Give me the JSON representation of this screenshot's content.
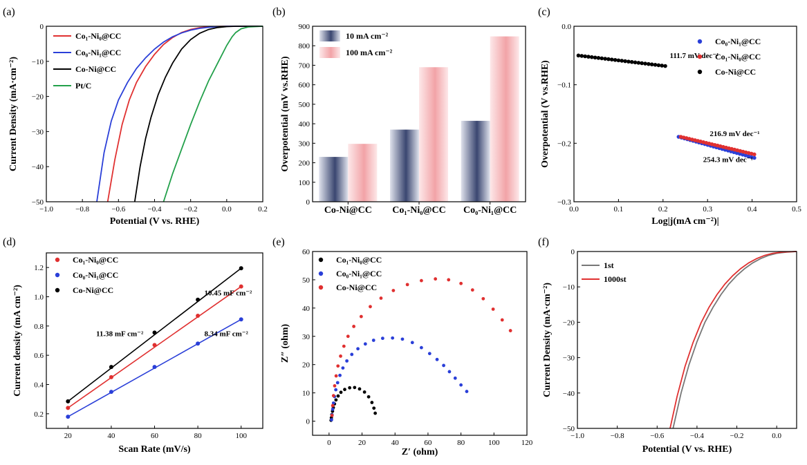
{
  "figure": {
    "panels": [
      {
        "id": "a",
        "letter": "(a)",
        "type": "line",
        "xlabel": "Potential (V vs. RHE)",
        "ylabel": "Current Density (mA·cm⁻²)",
        "xlim": [
          -1.0,
          0.2
        ],
        "ylim": [
          -50,
          0
        ],
        "xticks": [
          -1.0,
          -0.8,
          -0.6,
          -0.4,
          -0.2,
          0.0,
          0.2
        ],
        "xticklabels": [
          "−1.0",
          "−0.8",
          "−0.6",
          "−0.4",
          "−0.2",
          "0.0",
          "0.2"
        ],
        "yticks": [
          -50,
          -40,
          -30,
          -20,
          -10,
          0
        ],
        "yticklabels": [
          "−50",
          "−40",
          "−30",
          "−20",
          "−10",
          "0"
        ],
        "legend_position": "top-left",
        "series": [
          {
            "name": "Co₁-Ni₀@CC",
            "color": "#e03030",
            "x": [
              -0.66,
              -0.62,
              -0.58,
              -0.54,
              -0.5,
              -0.45,
              -0.4,
              -0.35,
              -0.3,
              -0.25,
              -0.2,
              -0.15,
              -0.1,
              -0.05,
              0.0,
              0.05,
              0.1,
              0.2
            ],
            "y": [
              -50,
              -38,
              -28,
              -21,
              -16,
              -11.5,
              -8,
              -5.2,
              -3.2,
              -1.8,
              -0.9,
              -0.4,
              -0.15,
              -0.05,
              0,
              0,
              0,
              0
            ]
          },
          {
            "name": "Co₀-Ni₁@CC",
            "color": "#2a3fd8",
            "x": [
              -0.72,
              -0.68,
              -0.64,
              -0.6,
              -0.55,
              -0.5,
              -0.45,
              -0.4,
              -0.35,
              -0.3,
              -0.25,
              -0.2,
              -0.15,
              -0.1,
              -0.05,
              0.0,
              0.1,
              0.2
            ],
            "y": [
              -50,
              -36,
              -27,
              -21,
              -16,
              -12,
              -9,
              -6.5,
              -4.5,
              -3,
              -1.9,
              -1.1,
              -0.6,
              -0.3,
              -0.1,
              0,
              0,
              0
            ]
          },
          {
            "name": "Co-Ni@CC",
            "color": "#000000",
            "x": [
              -0.51,
              -0.48,
              -0.45,
              -0.42,
              -0.38,
              -0.34,
              -0.3,
              -0.25,
              -0.2,
              -0.15,
              -0.1,
              -0.05,
              0.0,
              0.05,
              0.2
            ],
            "y": [
              -50,
              -40,
              -32,
              -26,
              -19.5,
              -14.5,
              -10.5,
              -6.5,
              -3.8,
              -2,
              -0.9,
              -0.35,
              -0.1,
              0,
              0
            ]
          },
          {
            "name": "Pt/C",
            "color": "#22a04a",
            "x": [
              -0.35,
              -0.3,
              -0.25,
              -0.2,
              -0.15,
              -0.1,
              -0.05,
              0.0,
              0.03,
              0.05,
              0.08,
              0.12,
              0.2
            ],
            "y": [
              -50,
              -42,
              -35,
              -28,
              -21.5,
              -15.5,
              -10.5,
              -5.5,
              -3,
              -1.8,
              -0.7,
              -0.2,
              0
            ]
          }
        ]
      },
      {
        "id": "b",
        "letter": "(b)",
        "type": "bar",
        "xlabel": "",
        "ylabel": "Overpotential (mV vs.RHE)",
        "ylim": [
          0,
          900
        ],
        "yticks": [
          0,
          100,
          200,
          300,
          400,
          500,
          600,
          700,
          800,
          900
        ],
        "yticklabels": [
          "0",
          "100",
          "200",
          "300",
          "400",
          "500",
          "600",
          "700",
          "800",
          "900"
        ],
        "categories": [
          "Co-Ni@CC",
          "Co₁-Ni₀@CC",
          "Co₀-Ni₁@CC"
        ],
        "legend_position": "top-left",
        "series": [
          {
            "name": "10 mA cm⁻²",
            "color": "#3c4870",
            "values": [
              230,
              370,
              415
            ]
          },
          {
            "name": "100 mA cm⁻²",
            "color": "#f0a0a4",
            "values": [
              297,
              690,
              848
            ]
          }
        ]
      },
      {
        "id": "c",
        "letter": "(c)",
        "type": "line",
        "xlabel": "Log|j(mA cm⁻²)|",
        "ylabel": "Overpotential (V vs.RHE)",
        "xlim": [
          0.0,
          0.5
        ],
        "ylim": [
          -0.3,
          0.0
        ],
        "xticks": [
          0.0,
          0.1,
          0.2,
          0.3,
          0.4,
          0.5
        ],
        "xticklabels": [
          "0.0",
          "0.1",
          "0.2",
          "0.3",
          "0.4",
          "0.5"
        ],
        "yticks": [
          -0.3,
          -0.2,
          -0.1,
          0.0
        ],
        "yticklabels": [
          "−0.3",
          "−0.2",
          "−0.1",
          "0.0"
        ],
        "legend_position": "top-right",
        "series": [
          {
            "name": "Co₀-Ni₁@CC",
            "color": "#2a3fd8",
            "x_start": 0.235,
            "x_end": 0.405,
            "y_start": -0.189,
            "y_end": -0.225
          },
          {
            "name": "Co₁-Ni₀@CC",
            "color": "#e03030",
            "x_start": 0.24,
            "x_end": 0.405,
            "y_start": -0.189,
            "y_end": -0.219
          },
          {
            "name": "Co-Ni@CC",
            "color": "#000000",
            "x_start": 0.01,
            "x_end": 0.205,
            "y_start": -0.05,
            "y_end": -0.068
          }
        ],
        "annotations": [
          "111.7 mV dec⁻¹",
          "216.9 mV dec⁻¹",
          "254.3 mV dec⁻¹"
        ]
      },
      {
        "id": "d",
        "letter": "(d)",
        "type": "scatter",
        "xlabel": "Scan Rate (mV/s)",
        "ylabel": "Current density (mA cm⁻²)",
        "xlim": [
          10,
          110
        ],
        "ylim": [
          0.1,
          1.3
        ],
        "xticks": [
          20,
          40,
          60,
          80,
          100
        ],
        "xticklabels": [
          "20",
          "40",
          "60",
          "80",
          "100"
        ],
        "yticks": [
          0.2,
          0.4,
          0.6,
          0.8,
          1.0,
          1.2
        ],
        "yticklabels": [
          "0.2",
          "0.4",
          "0.6",
          "0.8",
          "1.0",
          "1.2"
        ],
        "legend_position": "top-left",
        "x": [
          20,
          40,
          60,
          80,
          100
        ],
        "series": [
          {
            "name": "Co₁-Ni₀@CC",
            "color": "#e03030",
            "values": [
              0.24,
              0.45,
              0.67,
              0.87,
              1.07
            ]
          },
          {
            "name": "Co₀-Ni₁@CC",
            "color": "#2a3fd8",
            "values": [
              0.18,
              0.35,
              0.52,
              0.68,
              0.845
            ]
          },
          {
            "name": "Co-Ni@CC",
            "color": "#000000",
            "values": [
              0.285,
              0.52,
              0.755,
              0.98,
              1.195
            ]
          }
        ],
        "annotations": [
          "10.45 mF cm⁻²",
          "11.38 mF cm⁻²",
          "8.34 mF cm⁻²"
        ]
      },
      {
        "id": "e",
        "letter": "(e)",
        "type": "scatter",
        "xlabel": "Z′ (ohm)",
        "ylabel": "Z″ (ohm)",
        "xlim": [
          -10,
          120
        ],
        "ylim": [
          -5,
          60
        ],
        "xticks": [
          0,
          20,
          40,
          60,
          80,
          100,
          120
        ],
        "xticklabels": [
          "0",
          "20",
          "40",
          "60",
          "80",
          "100",
          "120"
        ],
        "yticks": [
          0,
          10,
          20,
          30,
          40,
          50,
          60
        ],
        "yticklabels": [
          "0",
          "10",
          "20",
          "30",
          "40",
          "50",
          "60"
        ],
        "legend_position": "top-left",
        "series": [
          {
            "name": "Co₁-Ni₀@CC",
            "color": "#000000",
            "x": [
              1.2,
              1.4,
              1.7,
              2.1,
              2.6,
              3.3,
              4.2,
              5.5,
              7.2,
              9.5,
              12.5,
              15.5,
              18.5,
              21.5,
              24,
              26,
              27.2,
              28
            ],
            "y": [
              0.3,
              1.2,
              2.3,
              3.5,
              4.8,
              6.1,
              7.5,
              8.9,
              10.2,
              11.2,
              11.8,
              11.9,
              11.4,
              10.3,
              8.6,
              6.6,
              4.6,
              2.8
            ]
          },
          {
            "name": "Co₀-Ni₁@CC",
            "color": "#2a3fd8",
            "x": [
              1.5,
              1.8,
              2.2,
              2.7,
              3.3,
              4.1,
              5.2,
              6.6,
              8.4,
              10.8,
              13.8,
              17.5,
              22,
              27,
              32.5,
              38.5,
              44.5,
              50.5,
              56,
              61,
              65.5,
              69.5,
              73,
              76.5,
              80,
              83.5
            ],
            "y": [
              0.5,
              2.2,
              4.2,
              6.4,
              8.7,
              11.1,
              13.6,
              16.2,
              18.8,
              21.3,
              23.6,
              25.6,
              27.3,
              28.6,
              29.3,
              29.4,
              29,
              27.8,
              26,
              23.9,
              21.8,
              19.7,
              17.5,
              15.2,
              12.8,
              10.5
            ]
          },
          {
            "name": "Co-Ni@CC",
            "color": "#e03030",
            "x": [
              1.8,
              2.2,
              2.7,
              3.4,
              4.3,
              5.4,
              7,
              9,
              11.5,
              15,
              19.5,
              25,
              31.5,
              39,
              47.5,
              56,
              64.5,
              72.5,
              80,
              87,
              93.5,
              99.5,
              105,
              110
            ],
            "y": [
              2,
              5.5,
              9,
              12.5,
              16,
              19.5,
              23,
              26.5,
              30,
              33.5,
              37,
              40.5,
              43.5,
              46.2,
              48.3,
              49.7,
              50.3,
              50,
              48.7,
              46.4,
              43.3,
              39.6,
              35.8,
              32
            ]
          }
        ]
      },
      {
        "id": "f",
        "letter": "(f)",
        "type": "line",
        "xlabel": "Potential (V vs. RHE)",
        "ylabel": "Current Density (mA·cm⁻²)",
        "xlim": [
          -1.0,
          0.1
        ],
        "ylim": [
          -50,
          0
        ],
        "xticks": [
          -1.0,
          -0.8,
          -0.6,
          -0.4,
          -0.2,
          0.0
        ],
        "xticklabels": [
          "−1.0",
          "−0.8",
          "−0.6",
          "−0.4",
          "−0.2",
          "0.0"
        ],
        "yticks": [
          -50,
          -40,
          -30,
          -20,
          -10,
          0
        ],
        "yticklabels": [
          "−50",
          "−40",
          "−30",
          "−20",
          "−10",
          "0"
        ],
        "legend_position": "top-left",
        "series": [
          {
            "name": "1st",
            "color": "#777777",
            "x": [
              -0.52,
              -0.48,
              -0.44,
              -0.4,
              -0.36,
              -0.32,
              -0.28,
              -0.24,
              -0.2,
              -0.16,
              -0.12,
              -0.08,
              -0.04,
              0.0,
              0.05,
              0.1
            ],
            "y": [
              -50,
              -40,
              -32,
              -25.5,
              -20,
              -15.8,
              -12.2,
              -9.2,
              -6.8,
              -4.8,
              -3.2,
              -2,
              -1.1,
              -0.5,
              -0.15,
              0
            ]
          },
          {
            "name": "1000st",
            "color": "#e03030",
            "x": [
              -0.535,
              -0.5,
              -0.46,
              -0.42,
              -0.38,
              -0.34,
              -0.3,
              -0.26,
              -0.22,
              -0.18,
              -0.14,
              -0.1,
              -0.06,
              -0.02,
              0.03,
              0.1
            ],
            "y": [
              -50,
              -41,
              -32.5,
              -25.8,
              -20.2,
              -15.8,
              -12.2,
              -9.2,
              -6.8,
              -4.8,
              -3.2,
              -2,
              -1.1,
              -0.5,
              -0.15,
              0
            ]
          }
        ]
      }
    ]
  }
}
